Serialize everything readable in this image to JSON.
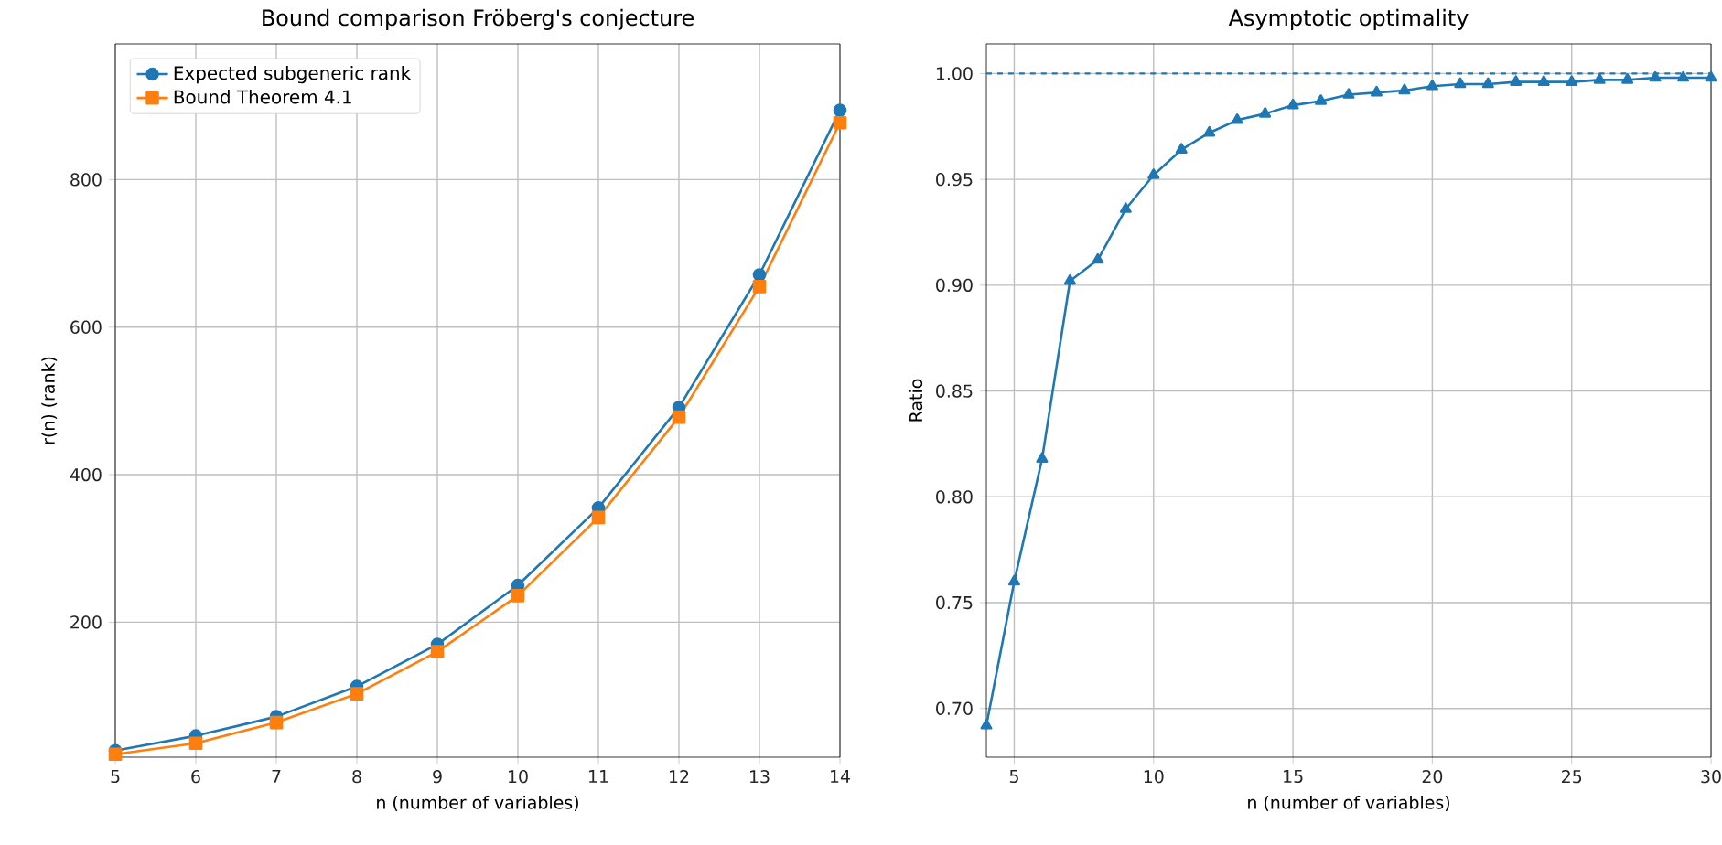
{
  "chart_data": [
    {
      "type": "line",
      "title": "Bound comparison Fröberg's conjecture",
      "xlabel": "n (number of variables)",
      "ylabel": "r(n) (rank)",
      "x": [
        5,
        6,
        7,
        8,
        9,
        10,
        11,
        12,
        13,
        14
      ],
      "series": [
        {
          "name": "Expected subgeneric rank",
          "color": "#1f77b4",
          "marker": "circle",
          "values": [
            26,
            46,
            72,
            113,
            170,
            250,
            355,
            491,
            671,
            894
          ]
        },
        {
          "name": "Bound Theorem 4.1",
          "color": "#ff7f0e",
          "marker": "square",
          "values": [
            21,
            36,
            64,
            103,
            160,
            236,
            342,
            478,
            655,
            877
          ]
        }
      ],
      "xlim": [
        5,
        14
      ],
      "ylim": [
        17,
        984
      ],
      "xticks": [
        5,
        6,
        7,
        8,
        9,
        10,
        11,
        12,
        13,
        14
      ],
      "yticks": [
        200,
        400,
        600,
        800
      ],
      "grid": true,
      "legend": "top left"
    },
    {
      "type": "line",
      "title": "Asymptotic optimality",
      "xlabel": "n (number of variables)",
      "ylabel": "Ratio",
      "x": [
        4,
        5,
        6,
        7,
        8,
        9,
        10,
        11,
        12,
        13,
        14,
        15,
        16,
        17,
        18,
        19,
        20,
        21,
        22,
        23,
        24,
        25,
        26,
        27,
        28,
        29,
        30
      ],
      "series": [
        {
          "color": "#1f77b4",
          "marker": "triangle",
          "values": [
            0.692,
            0.76,
            0.818,
            0.902,
            0.912,
            0.936,
            0.952,
            0.964,
            0.972,
            0.978,
            0.981,
            0.985,
            0.987,
            0.99,
            0.991,
            0.992,
            0.994,
            0.995,
            0.995,
            0.996,
            0.996,
            0.996,
            0.997,
            0.997,
            0.998,
            0.998,
            0.998
          ]
        }
      ],
      "ref_lines": [
        {
          "axis": "y",
          "value": 1.0,
          "color": "#1f77b4",
          "line_style": "dashed"
        }
      ],
      "xlim": [
        4,
        30
      ],
      "ylim": [
        0.677,
        1.014
      ],
      "xticks": [
        5,
        10,
        15,
        20,
        25,
        30
      ],
      "yticks": [
        {
          "value": 0.7,
          "label": "0.70"
        },
        {
          "value": 0.75,
          "label": "0.75"
        },
        {
          "value": 0.8,
          "label": "0.80"
        },
        {
          "value": 0.85,
          "label": "0.85"
        },
        {
          "value": 0.9,
          "label": "0.90"
        },
        {
          "value": 0.95,
          "label": "0.95"
        },
        {
          "value": 1.0,
          "label": "1.00"
        }
      ],
      "grid": true
    }
  ]
}
